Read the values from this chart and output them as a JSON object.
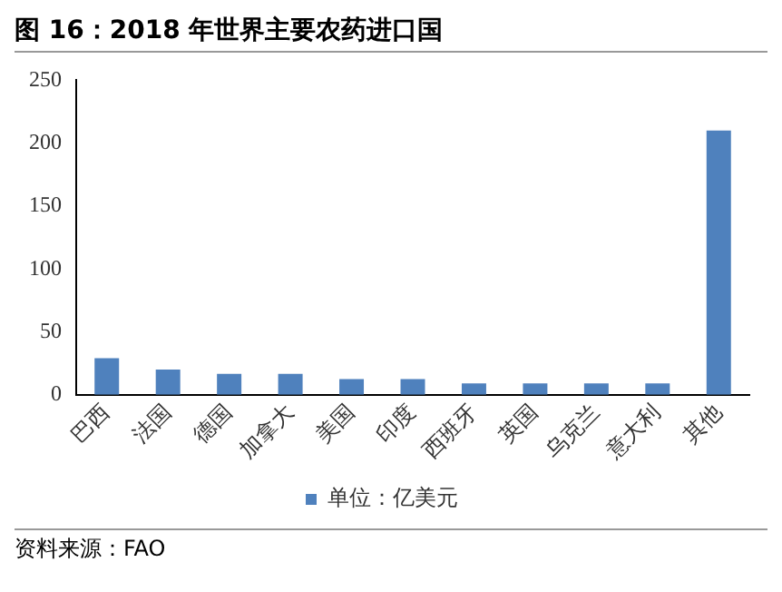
{
  "chart_data": {
    "type": "bar",
    "title": "图 16：2018 年世界主要农药进口国",
    "categories": [
      "巴西",
      "法国",
      "德国",
      "加拿大",
      "美国",
      "印度",
      "西班牙",
      "英国",
      "乌克兰",
      "意大利",
      "其他"
    ],
    "series": [
      {
        "name": "单位：亿美元",
        "color": "#4f81bd",
        "values": [
          29,
          20,
          16.5,
          16.5,
          12.5,
          12.5,
          9,
          9,
          9,
          9,
          210
        ]
      }
    ],
    "ylim": [
      0,
      250
    ],
    "yticks": [
      0,
      50,
      100,
      150,
      200,
      250
    ],
    "grid": false,
    "legend": "bottom",
    "annotations": [
      "资料来源：FAO"
    ]
  }
}
